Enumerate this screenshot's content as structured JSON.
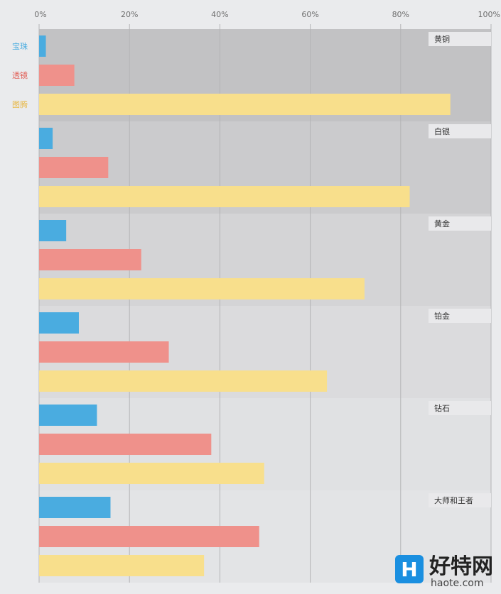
{
  "chart_data": {
    "type": "bar",
    "orientation": "horizontal",
    "x_ticks": [
      "0%",
      "20%",
      "40%",
      "60%",
      "80%",
      "100%"
    ],
    "xlim": [
      0,
      100
    ],
    "grid": true,
    "legend_position": "left",
    "categories": [
      "黄铜",
      "白银",
      "黄金",
      "铂金",
      "钻石",
      "大师和王者"
    ],
    "series": [
      {
        "name": "宝珠",
        "color": "#4aace0",
        "values": [
          1.5,
          3,
          6,
          8.8,
          12.8,
          15.8
        ]
      },
      {
        "name": "透镜",
        "color": "#ef918b",
        "values": [
          7.8,
          15.3,
          22.6,
          28.7,
          38.1,
          48.7
        ]
      },
      {
        "name": "图腾",
        "color": "#f8df8c",
        "values": [
          91,
          82,
          72,
          63.7,
          49.8,
          36.5
        ]
      }
    ],
    "band_colors": [
      "#c2c2c4",
      "#cbcbcd",
      "#d4d4d6",
      "#dbdbdd",
      "#e0e1e3",
      "#e3e4e6"
    ]
  },
  "watermark": {
    "logo_letter": "H",
    "text": "好特网",
    "url": "haote.com"
  }
}
